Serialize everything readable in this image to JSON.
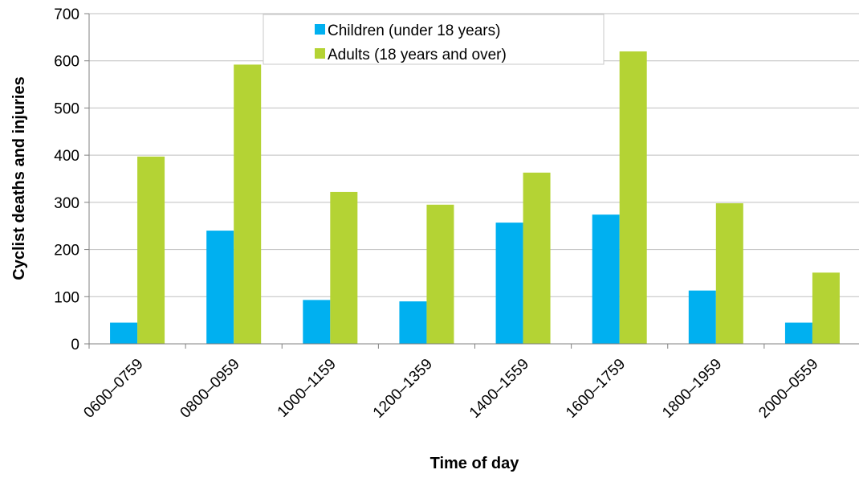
{
  "chart_data": {
    "type": "bar",
    "categories": [
      "0600–0759",
      "0800–0959",
      "1000–1159",
      "1200–1359",
      "1400–1559",
      "1600–1759",
      "1800–1959",
      "2000–0559"
    ],
    "series": [
      {
        "name": "Children (under 18 years)",
        "color": "#00b0f0",
        "values": [
          45,
          240,
          93,
          90,
          257,
          274,
          113,
          45
        ]
      },
      {
        "name": "Adults (18 years and over)",
        "color": "#b4d334",
        "values": [
          397,
          592,
          322,
          295,
          363,
          620,
          298,
          151
        ]
      }
    ],
    "xlabel": "Time of day",
    "ylabel": "Cyclist deaths and injuries",
    "ylim": [
      0,
      700
    ],
    "yticks": [
      0,
      100,
      200,
      300,
      400,
      500,
      600,
      700
    ],
    "grid": true,
    "legend_position": "top-center"
  }
}
